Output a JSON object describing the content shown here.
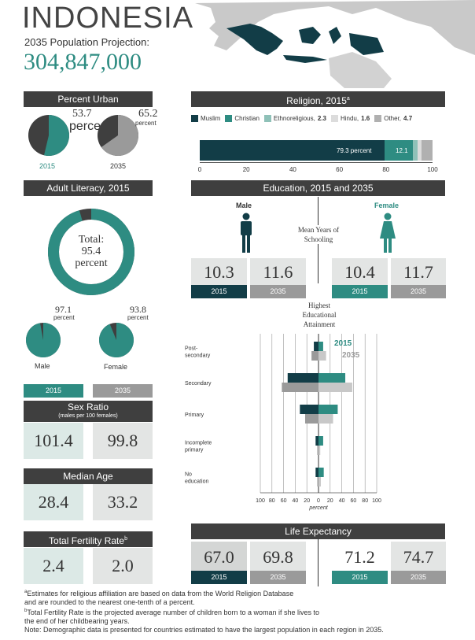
{
  "header": {
    "country": "INDONESIA",
    "projection_label": "2035 Population Projection:",
    "projection_value": "304,847,000"
  },
  "colors": {
    "dark": "#123d47",
    "teal": "#2e8c82",
    "gray": "#9a9a9a",
    "header": "#3f3f3f"
  },
  "urban": {
    "title": "Percent Urban",
    "y2015": {
      "year": "2015",
      "value": "53.7",
      "unit": "percent",
      "fraction": 0.537
    },
    "y2035": {
      "year": "2035",
      "value": "65.2",
      "unit": "percent",
      "fraction": 0.652
    }
  },
  "religion": {
    "title": "Religion, 2015",
    "title_sup": "a",
    "legend": [
      {
        "label": "Muslim",
        "value": "",
        "color": "#123d47"
      },
      {
        "label": "Christian",
        "value": "",
        "color": "#2e8c82"
      },
      {
        "label": "Ethnoreligious,",
        "value": "2.3",
        "color": "#8fc1b8"
      },
      {
        "label": "Hindu,",
        "value": "1.6",
        "color": "#dcdcdc"
      },
      {
        "label": "Other,",
        "value": "4.7",
        "color": "#b0b0b0"
      }
    ],
    "bar_labels": {
      "muslim": "79.3 percent",
      "christian": "12.1"
    },
    "segments": [
      79.3,
      12.1,
      2.3,
      1.6,
      4.7
    ],
    "axis_ticks": [
      "0",
      "20",
      "40",
      "60",
      "80",
      "100"
    ]
  },
  "literacy": {
    "title": "Adult Literacy, 2015",
    "total_label": "Total:",
    "total_value": "95.4",
    "total_unit": "percent",
    "total_fraction": 0.954,
    "male": {
      "label": "Male",
      "value": "97.1",
      "unit": "percent",
      "fraction": 0.971
    },
    "female": {
      "label": "Female",
      "value": "93.8",
      "unit": "percent",
      "fraction": 0.938
    }
  },
  "sex_ratio": {
    "y2015": "2015",
    "y2035": "2035",
    "title": "Sex Ratio",
    "subtitle": "(males per 100 females)",
    "v2015": "101.4",
    "v2035": "99.8"
  },
  "median_age": {
    "title": "Median Age",
    "v2015": "28.4",
    "v2035": "33.2"
  },
  "fertility": {
    "title": "Total Fertility Rate",
    "title_sup": "b",
    "v2015": "2.4",
    "v2035": "2.0"
  },
  "education": {
    "title": "Education, 2015 and 2035",
    "male_label": "Male",
    "female_label": "Female",
    "schooling_label": "Mean Years of Schooling",
    "male": {
      "v2015": "10.3",
      "v2035": "11.6"
    },
    "female": {
      "v2015": "10.4",
      "v2035": "11.7"
    },
    "y2015": "2015",
    "y2035": "2035",
    "attainment_label": "Highest Educational Attainment"
  },
  "chart_data": {
    "type": "bar",
    "categories": [
      "Post-secondary",
      "Secondary",
      "Primary",
      "Incomplete primary",
      "No education"
    ],
    "series": [
      {
        "name": "2015",
        "male": [
          8,
          53,
          32,
          5,
          5
        ],
        "female": [
          8,
          46,
          33,
          8,
          9
        ]
      },
      {
        "name": "2035",
        "male": [
          12,
          63,
          23,
          2,
          2
        ],
        "female": [
          13,
          58,
          25,
          3,
          4
        ]
      }
    ],
    "xlabel": "percent",
    "xlim": [
      -100,
      100
    ],
    "xticks": [
      "100",
      "80",
      "60",
      "40",
      "20",
      "0",
      "20",
      "40",
      "60",
      "80",
      "100"
    ],
    "legend": [
      "2015",
      "2035"
    ],
    "category_labels": [
      "Post-\nsecondary",
      "Secondary",
      "Primary",
      "Incomplete\nprimary",
      "No\neducation"
    ]
  },
  "life_expectancy": {
    "title": "Life Expectancy",
    "male": {
      "v2015": "67.0",
      "v2035": "69.8"
    },
    "female": {
      "v2015": "71.2",
      "v2035": "74.7"
    }
  },
  "footnotes": {
    "a1": "Estimates for religious affiliation are based on data from the World Religion Database",
    "a2": "and are rounded to the nearest one-tenth of a percent.",
    "b1": "Total Fertility Rate is the projected average number of children born to a woman if she lives to",
    "b2": "the end of her childbearing years.",
    "note": "Note: Demographic data is presented for countries estimated to have the largest population in each region in 2035."
  }
}
